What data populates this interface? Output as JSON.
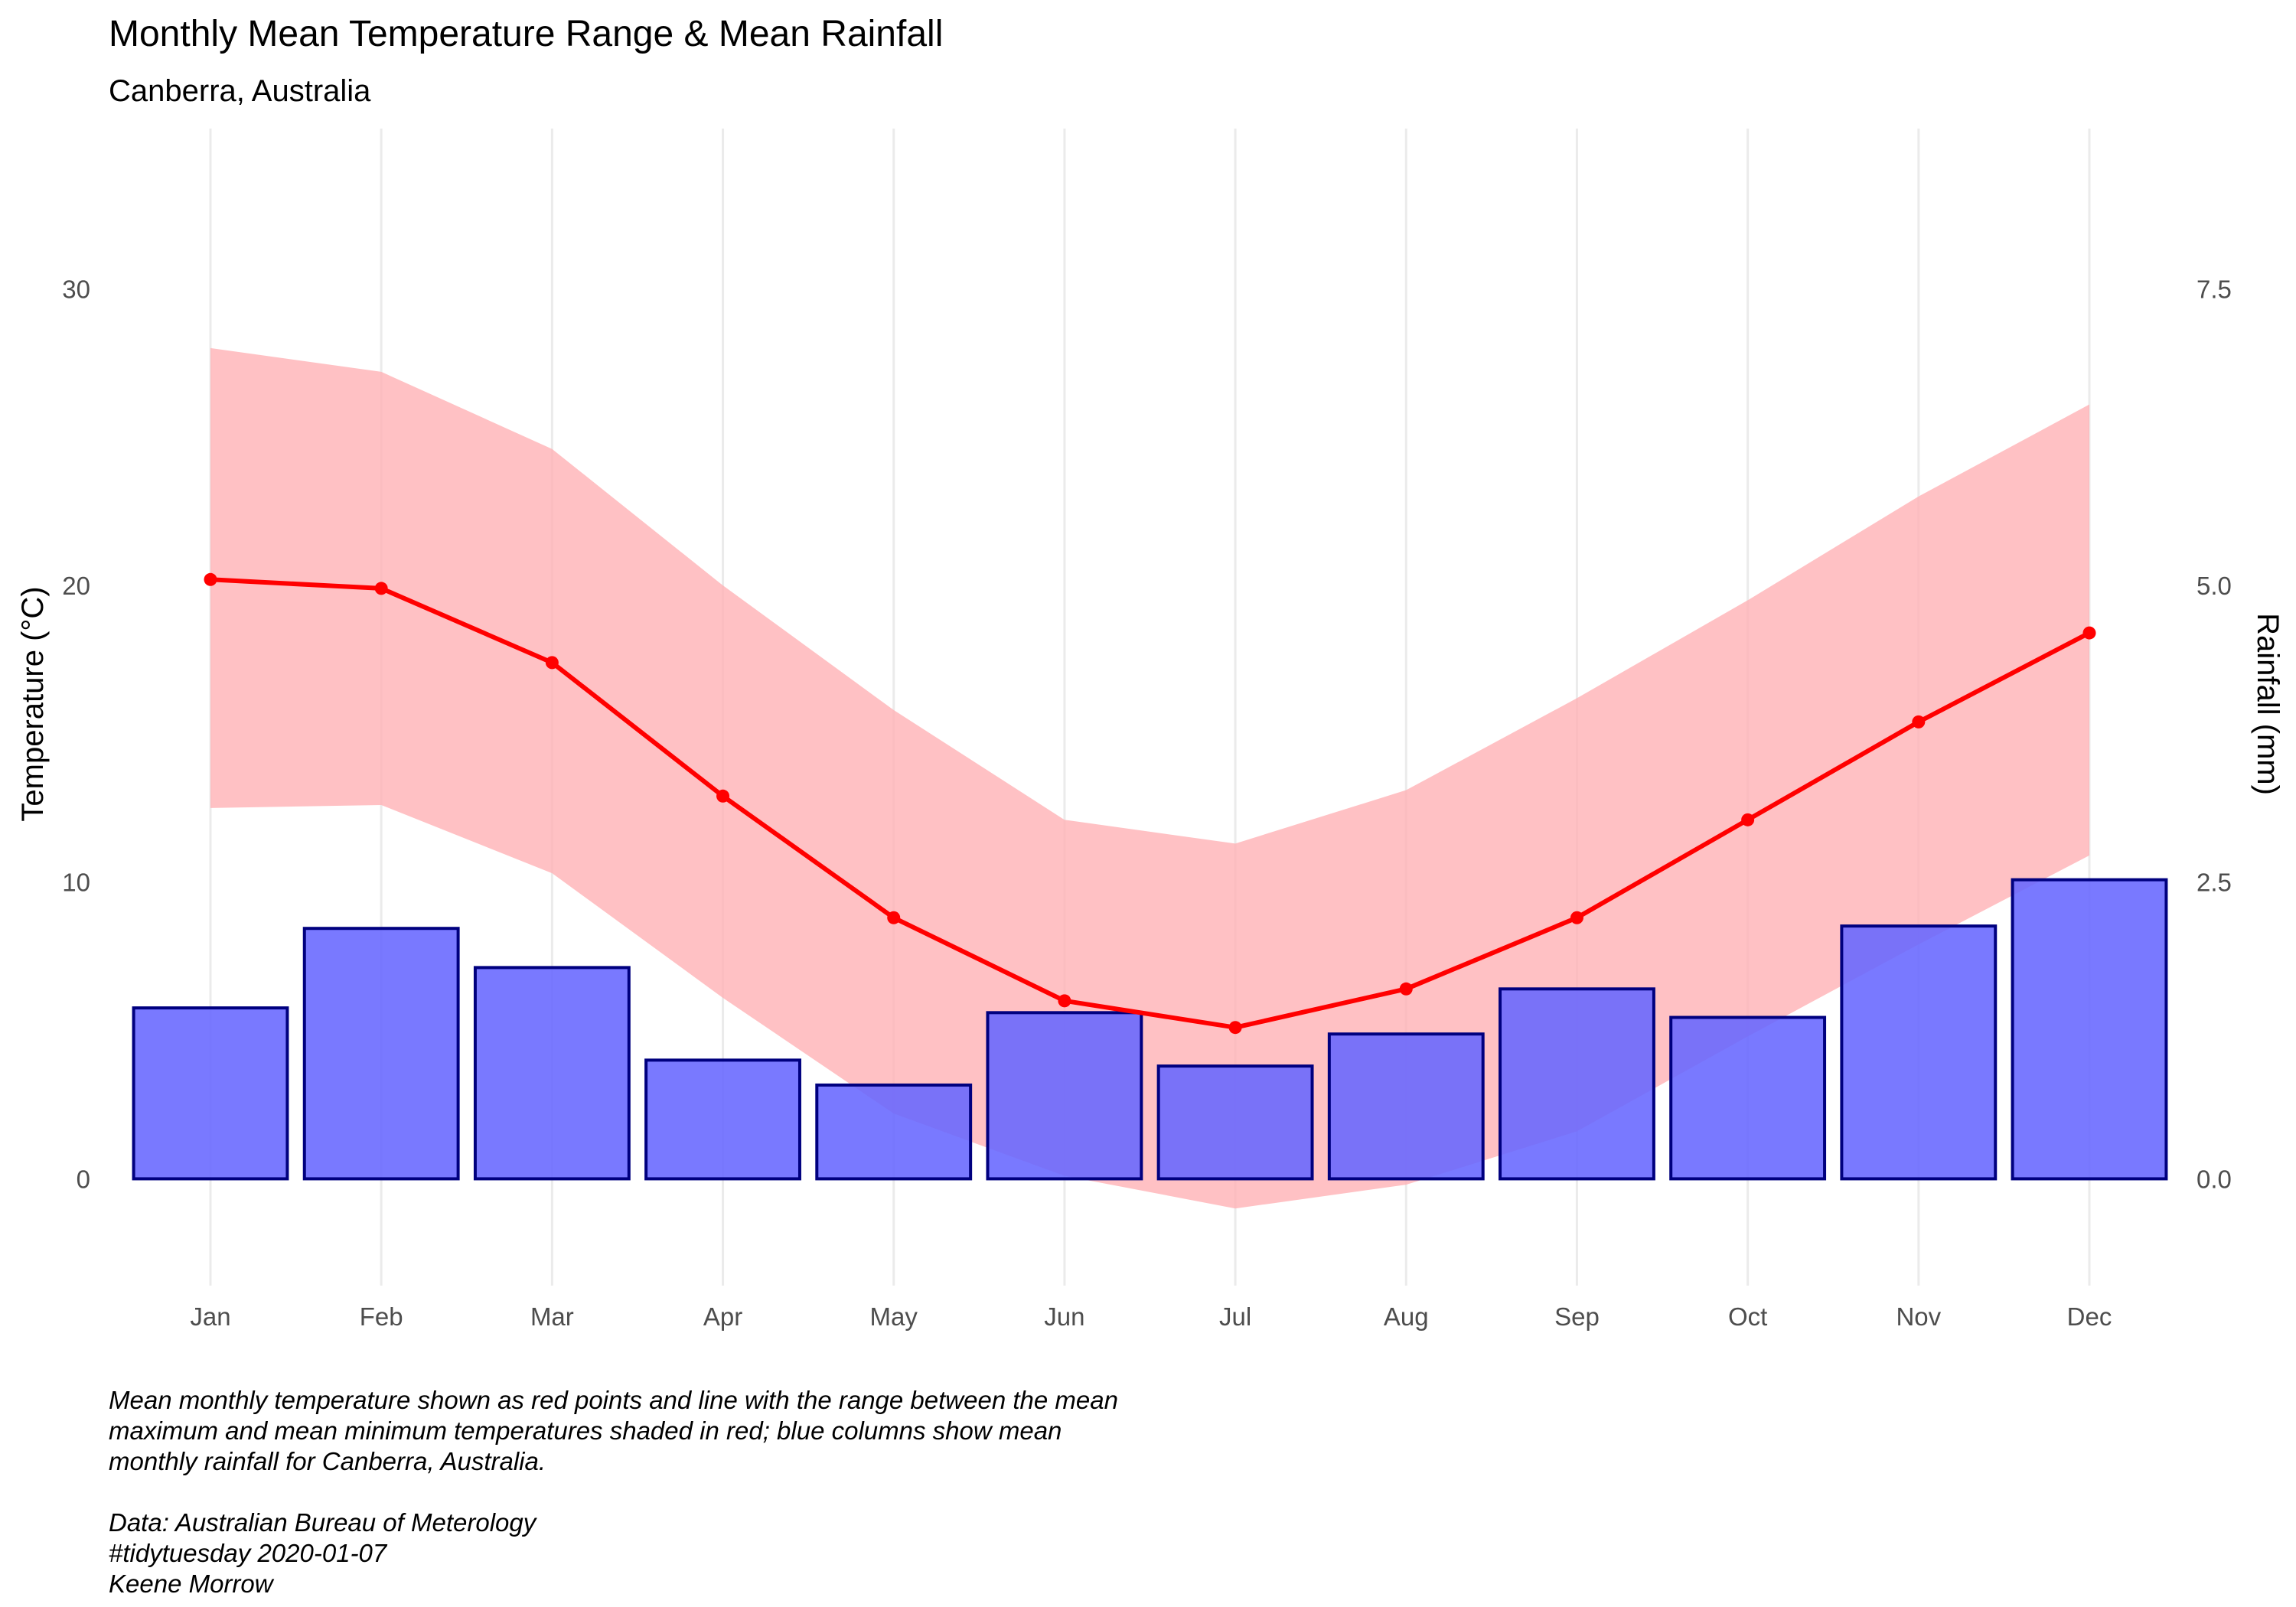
{
  "chart_data": {
    "type": "bar+line+area",
    "title": "Monthly Mean Temperature Range & Mean Rainfall",
    "subtitle": "Canberra, Australia",
    "ylabel": "Temperature (°C)",
    "y2label": "Rainfall (mm)",
    "categories": [
      "Jan",
      "Feb",
      "Mar",
      "Apr",
      "May",
      "Jun",
      "Jul",
      "Aug",
      "Sep",
      "Oct",
      "Nov",
      "Dec"
    ],
    "ylim": [
      -3.6,
      35.4
    ],
    "yticks": [
      0,
      10,
      20,
      30
    ],
    "y2lim": [
      -0.9,
      8.85
    ],
    "y2ticks": [
      "0.0",
      "2.5",
      "5.0",
      "7.5"
    ],
    "grid": true,
    "series": [
      {
        "values": [
          20.2,
          19.9,
          17.4,
          12.9,
          8.8,
          6.0,
          5.1,
          6.4,
          8.8,
          12.1,
          15.4,
          18.4
        ],
        "color": "#ff0000"
      },
      {
        "values": [
          28.0,
          27.2,
          24.6,
          20.0,
          15.8,
          12.1,
          11.3,
          13.1,
          16.2,
          19.5,
          23.0,
          26.1
        ],
        "color": "#ffb1b5"
      },
      {
        "values": [
          12.5,
          12.6,
          10.3,
          6.1,
          2.2,
          0.1,
          -1.0,
          -0.2,
          1.6,
          4.8,
          7.9,
          10.9
        ],
        "color": "#ffb1b5"
      },
      {
        "values": [
          1.44,
          2.11,
          1.78,
          1.0,
          0.79,
          1.4,
          0.95,
          1.22,
          1.6,
          1.36,
          2.13,
          2.52
        ],
        "color": "#6666ff"
      }
    ],
    "caption": [
      "Mean monthly temperature shown as red points and line with the range between the mean",
      "maximum and mean minimum temperatures shaded in red; blue columns show mean",
      "monthly rainfall for Canberra, Australia.",
      "",
      "Data: Australian Bureau of Meterology",
      "#tidytuesday 2020-01-07",
      "Keene Morrow"
    ]
  }
}
